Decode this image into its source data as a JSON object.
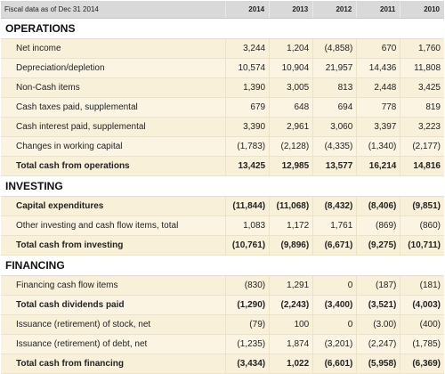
{
  "header": {
    "label": "Fiscal data as of Dec 31 2014",
    "years": [
      "2014",
      "2013",
      "2012",
      "2011",
      "2010"
    ]
  },
  "sections": [
    {
      "title": "OPERATIONS",
      "rows": [
        {
          "label": "Net income",
          "values": [
            "3,244",
            "1,204",
            "(4,858)",
            "670",
            "1,760"
          ],
          "total": false
        },
        {
          "label": "Depreciation/depletion",
          "values": [
            "10,574",
            "10,904",
            "21,957",
            "14,436",
            "11,808"
          ],
          "total": false
        },
        {
          "label": "Non-Cash items",
          "values": [
            "1,390",
            "3,005",
            "813",
            "2,448",
            "3,425"
          ],
          "total": false
        },
        {
          "label": "Cash taxes paid, supplemental",
          "values": [
            "679",
            "648",
            "694",
            "778",
            "819"
          ],
          "total": false
        },
        {
          "label": "Cash interest paid, supplemental",
          "values": [
            "3,390",
            "2,961",
            "3,060",
            "3,397",
            "3,223"
          ],
          "total": false
        },
        {
          "label": "Changes in working capital",
          "values": [
            "(1,783)",
            "(2,128)",
            "(4,335)",
            "(1,340)",
            "(2,177)"
          ],
          "total": false
        },
        {
          "label": "Total cash from operations",
          "values": [
            "13,425",
            "12,985",
            "13,577",
            "16,214",
            "14,816"
          ],
          "total": true
        }
      ]
    },
    {
      "title": "INVESTING",
      "rows": [
        {
          "label": "Capital expenditures",
          "values": [
            "(11,844)",
            "(11,068)",
            "(8,432)",
            "(8,406)",
            "(9,851)"
          ],
          "total": true
        },
        {
          "label": "Other investing and cash flow items, total",
          "values": [
            "1,083",
            "1,172",
            "1,761",
            "(869)",
            "(860)"
          ],
          "total": false
        },
        {
          "label": "Total cash from investing",
          "values": [
            "(10,761)",
            "(9,896)",
            "(6,671)",
            "(9,275)",
            "(10,711)"
          ],
          "total": true
        }
      ]
    },
    {
      "title": "FINANCING",
      "rows": [
        {
          "label": "Financing cash flow items",
          "values": [
            "(830)",
            "1,291",
            "0",
            "(187)",
            "(181)"
          ],
          "total": false
        },
        {
          "label": "Total cash dividends paid",
          "values": [
            "(1,290)",
            "(2,243)",
            "(3,400)",
            "(3,521)",
            "(4,003)"
          ],
          "total": true
        },
        {
          "label": "Issuance (retirement) of stock, net",
          "values": [
            "(79)",
            "100",
            "0",
            "(3.00)",
            "(400)"
          ],
          "total": false
        },
        {
          "label": "Issuance (retirement) of debt, net",
          "values": [
            "(1,235)",
            "1,874",
            "(3,201)",
            "(2,247)",
            "(1,785)"
          ],
          "total": false
        },
        {
          "label": "Total cash from financing",
          "values": [
            "(3,434)",
            "1,022",
            "(6,601)",
            "(5,958)",
            "(6,369)"
          ],
          "total": true
        }
      ]
    }
  ]
}
